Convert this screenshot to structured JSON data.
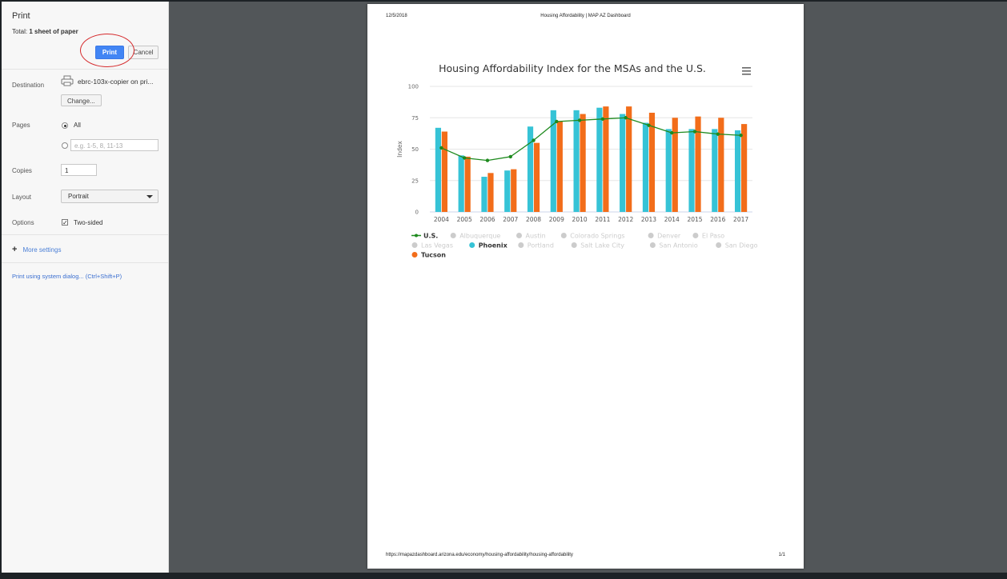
{
  "dialog": {
    "title": "Print",
    "total_prefix": "Total: ",
    "total_value": "1 sheet of paper",
    "print_label": "Print",
    "cancel_label": "Cancel",
    "destination": {
      "label": "Destination",
      "value": "ebrc-103x-copier on pri...",
      "change_label": "Change...",
      "icon": "printer-icon"
    },
    "pages": {
      "label": "Pages",
      "all_label": "All",
      "custom_placeholder": "e.g. 1-5, 8, 11-13"
    },
    "copies": {
      "label": "Copies",
      "value": "1"
    },
    "layout": {
      "label": "Layout",
      "value": "Portrait"
    },
    "options": {
      "label": "Options",
      "two_sided_label": "Two-sided"
    },
    "more_settings_label": "More settings",
    "system_dialog_label": "Print using system dialog... (Ctrl+Shift+P)",
    "accent_color": "#4285f4",
    "highlight_color": "#d5292b"
  },
  "preview": {
    "header_date": "12/5/2018",
    "header_title": "Housing Affordability | MAP AZ Dashboard",
    "footer_url": "https://mapazdashboard.arizona.edu/economy/housing-affordability/housing-affordability",
    "footer_page": "1/1",
    "menu_icon": "hamburger-menu-icon"
  },
  "chart_data": {
    "type": "bar",
    "title": "Housing Affordability Index for the MSAs and the U.S.",
    "ylabel": "Index",
    "ylim": [
      0,
      100
    ],
    "yticks": [
      0,
      25,
      50,
      75,
      100
    ],
    "grid": true,
    "legend_position": "bottom-left",
    "categories": [
      "2004",
      "2005",
      "2006",
      "2007",
      "2008",
      "2009",
      "2010",
      "2011",
      "2012",
      "2013",
      "2014",
      "2015",
      "2016",
      "2017"
    ],
    "series": [
      {
        "name": "Phoenix",
        "type": "bar",
        "color": "#36c3d6",
        "values": [
          67,
          45,
          28,
          33,
          68,
          81,
          81,
          83,
          78,
          71,
          66,
          66,
          66,
          65
        ]
      },
      {
        "name": "Tucson",
        "type": "bar",
        "color": "#f26d1a",
        "values": [
          64,
          44,
          31,
          34,
          55,
          72,
          78,
          84,
          84,
          79,
          75,
          76,
          75,
          70
        ]
      },
      {
        "name": "U.S.",
        "type": "line",
        "color": "#1e8a1e",
        "values": [
          51,
          43,
          41,
          44,
          57,
          72,
          73,
          74,
          75,
          69,
          63,
          64,
          62,
          61
        ]
      }
    ],
    "legend": [
      {
        "name": "U.S.",
        "active": true,
        "marker": "line",
        "color": "#1e8a1e"
      },
      {
        "name": "Albuquerque",
        "active": false,
        "color": "#cccccc"
      },
      {
        "name": "Austin",
        "active": false,
        "color": "#cccccc"
      },
      {
        "name": "Colorado Springs",
        "active": false,
        "color": "#cccccc"
      },
      {
        "name": "Denver",
        "active": false,
        "color": "#cccccc"
      },
      {
        "name": "El Paso",
        "active": false,
        "color": "#cccccc"
      },
      {
        "name": "Las Vegas",
        "active": false,
        "color": "#cccccc"
      },
      {
        "name": "Phoenix",
        "active": true,
        "color": "#36c3d6"
      },
      {
        "name": "Portland",
        "active": false,
        "color": "#cccccc"
      },
      {
        "name": "Salt Lake City",
        "active": false,
        "color": "#cccccc"
      },
      {
        "name": "San Antonio",
        "active": false,
        "color": "#cccccc"
      },
      {
        "name": "San Diego",
        "active": false,
        "color": "#cccccc"
      },
      {
        "name": "Tucson",
        "active": true,
        "color": "#f26d1a"
      }
    ]
  }
}
